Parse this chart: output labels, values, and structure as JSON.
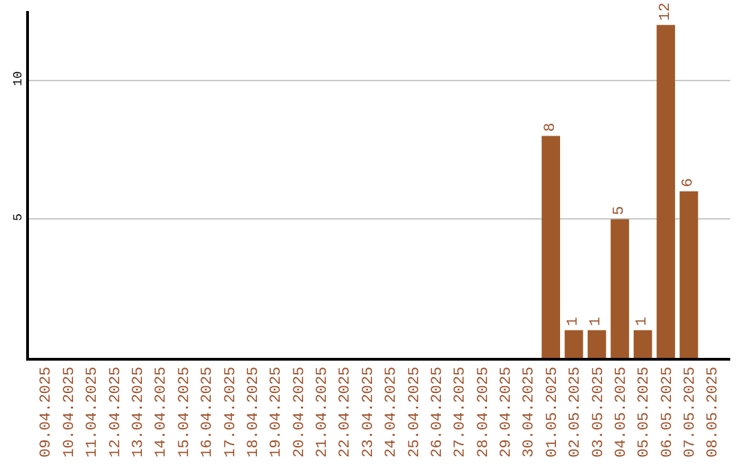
{
  "chart_data": {
    "type": "bar",
    "categories": [
      "09.04.2025",
      "10.04.2025",
      "11.04.2025",
      "12.04.2025",
      "13.04.2025",
      "14.04.2025",
      "15.04.2025",
      "16.04.2025",
      "17.04.2025",
      "18.04.2025",
      "19.04.2025",
      "20.04.2025",
      "21.04.2025",
      "22.04.2025",
      "23.04.2025",
      "24.04.2025",
      "25.04.2025",
      "26.04.2025",
      "27.04.2025",
      "28.04.2025",
      "29.04.2025",
      "30.04.2025",
      "01.05.2025",
      "02.05.2025",
      "03.05.2025",
      "04.05.2025",
      "05.05.2025",
      "06.05.2025",
      "07.05.2025",
      "08.05.2025"
    ],
    "values": [
      0,
      0,
      0,
      0,
      0,
      0,
      0,
      0,
      0,
      0,
      0,
      0,
      0,
      0,
      0,
      0,
      0,
      0,
      0,
      0,
      0,
      0,
      8,
      1,
      1,
      5,
      1,
      12,
      6,
      0
    ],
    "value_labels": [
      null,
      null,
      null,
      null,
      null,
      null,
      null,
      null,
      null,
      null,
      null,
      null,
      null,
      null,
      null,
      null,
      null,
      null,
      null,
      null,
      null,
      null,
      "8",
      "1",
      "1",
      "5",
      "1",
      "12",
      "6",
      null
    ],
    "color": "#a0592a",
    "ylim": [
      0,
      12.5
    ],
    "yticks": [
      5,
      10
    ],
    "grid": "y",
    "legend": false
  }
}
